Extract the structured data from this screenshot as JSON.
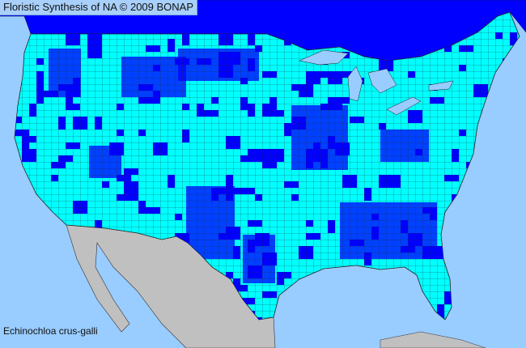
{
  "header": {
    "title": "Floristic Synthesis of NA © 2009 BONAP"
  },
  "map": {
    "species": "Echinochloa crus-galli",
    "colors": {
      "ocean": "#99ccff",
      "present_state": "#0000ff",
      "present_county": "#00ffff",
      "outside_region": "#c0c0c0",
      "boundaries": "#333333"
    }
  }
}
